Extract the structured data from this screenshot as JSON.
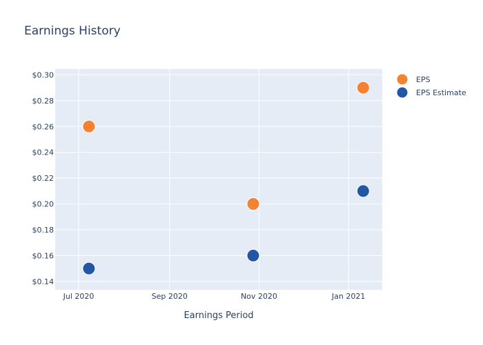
{
  "chart_data": {
    "type": "scatter",
    "title": "Earnings History",
    "xlabel": "Earnings Period",
    "ylabel": "",
    "x_ticks": [
      "Jul 2020",
      "Sep 2020",
      "Nov 2020",
      "Jan 2021"
    ],
    "x_tick_dates": [
      "2020-07-01",
      "2020-09-01",
      "2020-11-01",
      "2021-01-01"
    ],
    "x_range": [
      "2020-06-15",
      "2021-01-24"
    ],
    "y_ticks": [
      "$0.14",
      "$0.16",
      "$0.18",
      "$0.20",
      "$0.22",
      "$0.24",
      "$0.26",
      "$0.28",
      "$0.30"
    ],
    "y_tick_values": [
      0.14,
      0.16,
      0.18,
      0.2,
      0.22,
      0.24,
      0.26,
      0.28,
      0.3
    ],
    "ylim": [
      0.1335,
      0.3045
    ],
    "grid": true,
    "legend_position": "top-right",
    "plot_background": "#e5ecf6",
    "series": [
      {
        "name": "EPS",
        "color": "#f58231",
        "points": [
          {
            "x": "2020-07-08",
            "y": 0.26
          },
          {
            "x": "2020-10-28",
            "y": 0.2
          },
          {
            "x": "2021-01-11",
            "y": 0.29
          }
        ]
      },
      {
        "name": "EPS Estimate",
        "color": "#2456a6",
        "points": [
          {
            "x": "2020-07-08",
            "y": 0.15
          },
          {
            "x": "2020-10-28",
            "y": 0.16
          },
          {
            "x": "2021-01-11",
            "y": 0.21
          }
        ]
      }
    ]
  }
}
